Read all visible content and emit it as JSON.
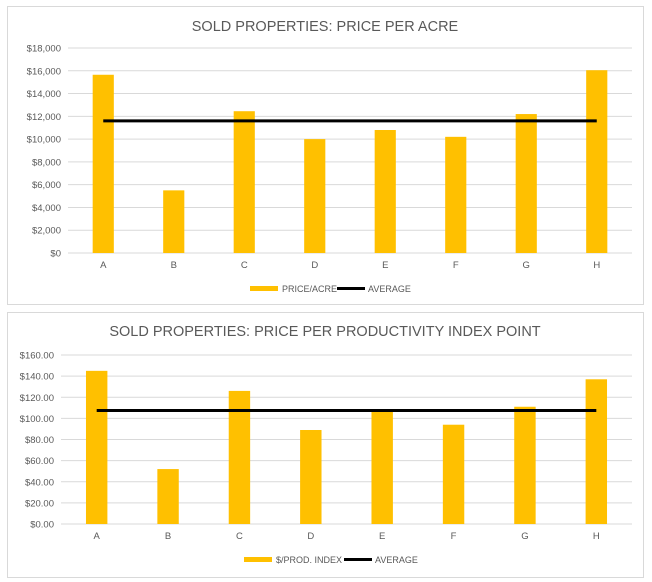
{
  "chart_data": [
    {
      "type": "bar",
      "title": "SOLD PROPERTIES: PRICE PER ACRE",
      "categories": [
        "A",
        "B",
        "C",
        "D",
        "E",
        "F",
        "G",
        "H"
      ],
      "series": [
        {
          "name": "PRICE/ACRE",
          "type": "bar",
          "color": "#FFC000",
          "values": [
            15650,
            5500,
            12450,
            10000,
            10800,
            10200,
            12200,
            16050
          ]
        },
        {
          "name": "AVERAGE",
          "type": "line",
          "color": "#000000",
          "values": [
            11600,
            11600,
            11600,
            11600,
            11600,
            11600,
            11600,
            11600
          ]
        }
      ],
      "ylim": [
        0,
        18000
      ],
      "yticks": [
        0,
        2000,
        4000,
        6000,
        8000,
        10000,
        12000,
        14000,
        16000,
        18000
      ],
      "ytick_labels": [
        "$0",
        "$2,000",
        "$4,000",
        "$6,000",
        "$8,000",
        "$10,000",
        "$12,000",
        "$14,000",
        "$16,000",
        "$18,000"
      ],
      "grid": true,
      "legend": "bottom"
    },
    {
      "type": "bar",
      "title": "SOLD PROPERTIES: PRICE PER PRODUCTIVITY INDEX  POINT",
      "categories": [
        "A",
        "B",
        "C",
        "D",
        "E",
        "F",
        "G",
        "H"
      ],
      "series": [
        {
          "name": "$/PROD. INDEX",
          "type": "bar",
          "color": "#FFC000",
          "values": [
            145,
            52,
            126,
            89,
            108,
            94,
            111,
            137
          ]
        },
        {
          "name": "AVERAGE",
          "type": "line",
          "color": "#000000",
          "values": [
            107.5,
            107.5,
            107.5,
            107.5,
            107.5,
            107.5,
            107.5,
            107.5
          ]
        }
      ],
      "ylim": [
        0,
        160
      ],
      "yticks": [
        0,
        20,
        40,
        60,
        80,
        100,
        120,
        140,
        160
      ],
      "ytick_labels": [
        "$0.00",
        "$20.00",
        "$40.00",
        "$60.00",
        "$80.00",
        "$100.00",
        "$120.00",
        "$140.00",
        "$160.00"
      ],
      "grid": true,
      "legend": "bottom"
    }
  ]
}
